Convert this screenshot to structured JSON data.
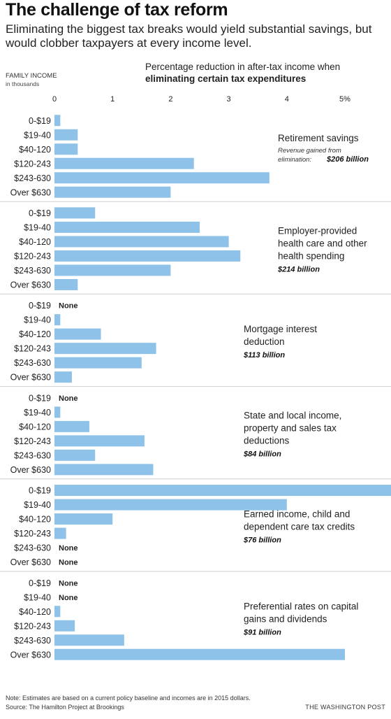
{
  "header": {
    "title": "The challenge of tax reform",
    "subtitle": "Eliminating the biggest tax breaks would yield substantial savings, but would clobber taxpayers at every income level."
  },
  "labels": {
    "family_income": "FAMILY INCOME",
    "family_income_sub": "in thousands",
    "axis_title_line1": "Percentage reduction in after-tax income when",
    "axis_title_line2": "eliminating certain tax expenditures"
  },
  "footer": {
    "note": "Note: Estimates are based on a current policy baseline and incomes are in 2015 dollars.",
    "source": "Source: The Hamilton Project at Brookings",
    "credit": "THE WASHINGTON POST"
  },
  "colors": {
    "bar": "#8ec2e8",
    "divider": "#cfcfcf"
  },
  "chart_data": {
    "type": "bar",
    "orientation": "horizontal",
    "x_ticks": [
      "0",
      "1",
      "2",
      "3",
      "4",
      "5%"
    ],
    "xlim": [
      0,
      5.7
    ],
    "categories": [
      "0-$19",
      "$19-40",
      "$40-120",
      "$120-243",
      "$243-630",
      "Over $630"
    ],
    "none_label": "None",
    "panels": [
      {
        "title_lines": [
          "Retirement savings"
        ],
        "note_lines": [
          "Revenue gained from",
          "elimination:"
        ],
        "revenue": "$206 billion",
        "values": [
          0.1,
          0.4,
          0.4,
          2.4,
          3.7,
          2.0
        ]
      },
      {
        "title_lines": [
          "Employer-provided",
          "health care and other",
          "health spending"
        ],
        "revenue": "$214 billion",
        "values": [
          0.7,
          2.5,
          3.0,
          3.2,
          2.0,
          0.4
        ]
      },
      {
        "title_lines": [
          "Mortgage interest",
          "deduction"
        ],
        "revenue": "$113 billion",
        "values": [
          null,
          0.1,
          0.8,
          1.75,
          1.5,
          0.3
        ]
      },
      {
        "title_lines": [
          "State and local income,",
          "property and sales tax",
          "deductions"
        ],
        "revenue": "$84 billion",
        "values": [
          null,
          0.1,
          0.6,
          1.55,
          0.7,
          1.7
        ]
      },
      {
        "title_lines": [
          "Earned income, child and",
          "dependent care tax credits"
        ],
        "revenue": "$76 billion",
        "values": [
          5.8,
          4.0,
          1.0,
          0.2,
          null,
          null
        ]
      },
      {
        "title_lines": [
          "Preferential rates on capital",
          "gains and dividends"
        ],
        "revenue": "$91 billion",
        "values": [
          null,
          null,
          0.1,
          0.35,
          1.2,
          5.0
        ]
      }
    ]
  }
}
